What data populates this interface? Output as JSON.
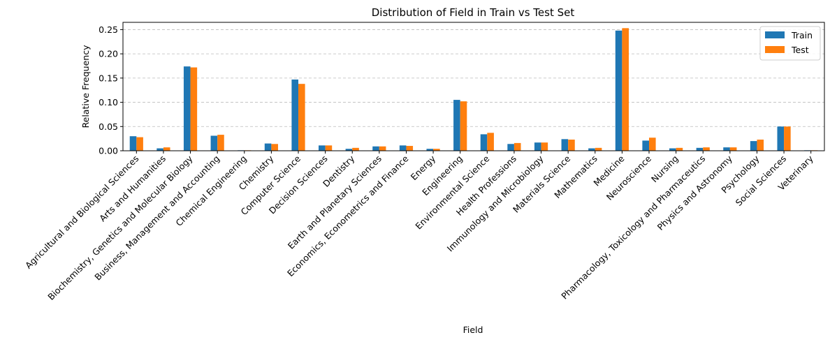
{
  "chart_data": {
    "type": "bar",
    "title": "Distribution of Field in Train vs Test Set",
    "xlabel": "Field",
    "ylabel": "Relative Frequency",
    "ylim": [
      0,
      0.265
    ],
    "yticks": [
      "0.00",
      "0.05",
      "0.10",
      "0.15",
      "0.20",
      "0.25"
    ],
    "grid": "y-dashed",
    "legend_position": "top-right",
    "categories": [
      "Agricultural and Biological Sciences",
      "Arts and Humanities",
      "Biochemistry, Genetics and Molecular Biology",
      "Business, Management and Accounting",
      "Chemical Engineering",
      "Chemistry",
      "Computer Science",
      "Decision Sciences",
      "Dentistry",
      "Earth and Planetary Sciences",
      "Economics, Econometrics and Finance",
      "Energy",
      "Engineering",
      "Environmental Science",
      "Health Professions",
      "Immunology and Microbiology",
      "Materials Science",
      "Mathematics",
      "Medicine",
      "Neuroscience",
      "Nursing",
      "Pharmacology, Toxicology and Pharmaceutics",
      "Physics and Astronomy",
      "Psychology",
      "Social Sciences",
      "Veterinary"
    ],
    "series": [
      {
        "name": "Train",
        "color": "#1f77b4",
        "values": [
          0.03,
          0.005,
          0.174,
          0.031,
          0.001,
          0.015,
          0.147,
          0.011,
          0.004,
          0.009,
          0.011,
          0.004,
          0.105,
          0.034,
          0.014,
          0.017,
          0.024,
          0.005,
          0.248,
          0.021,
          0.005,
          0.006,
          0.007,
          0.02,
          0.05,
          0.001
        ]
      },
      {
        "name": "Test",
        "color": "#ff7f0e",
        "values": [
          0.028,
          0.007,
          0.172,
          0.033,
          0.001,
          0.014,
          0.138,
          0.011,
          0.006,
          0.009,
          0.01,
          0.004,
          0.102,
          0.037,
          0.016,
          0.017,
          0.023,
          0.006,
          0.253,
          0.027,
          0.006,
          0.007,
          0.007,
          0.023,
          0.05,
          0.001
        ]
      }
    ]
  }
}
